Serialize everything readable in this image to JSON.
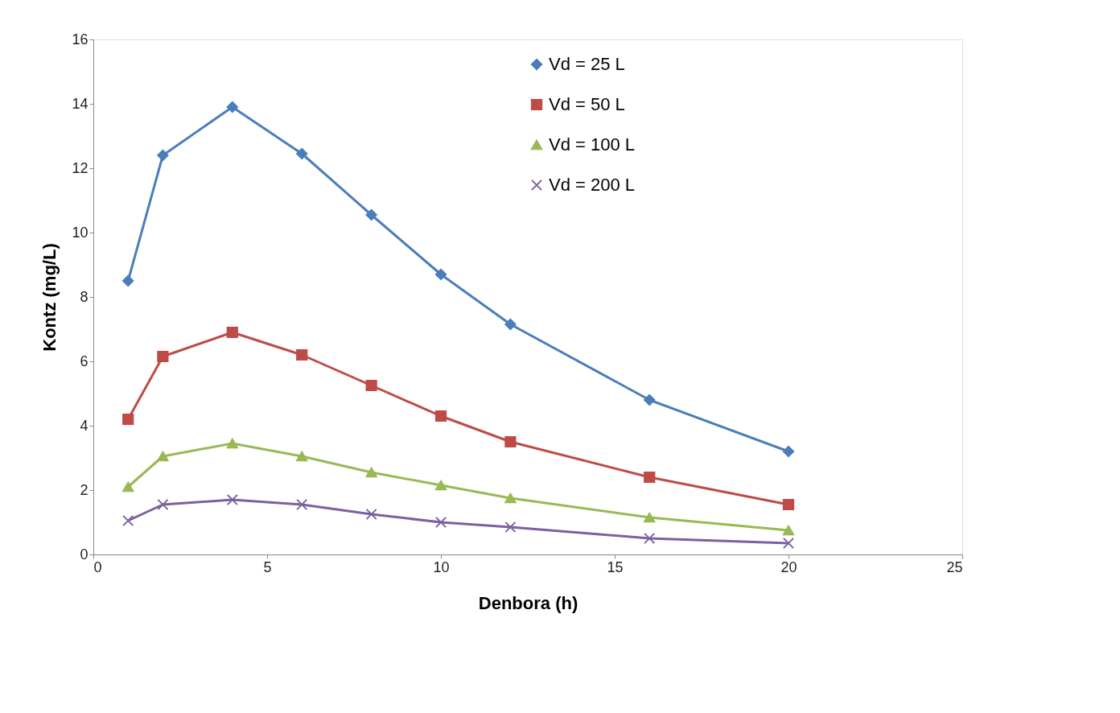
{
  "chart_data": {
    "type": "line",
    "xlabel": "Denbora (h)",
    "ylabel": "Kontz (mg/L)",
    "xlim": [
      0,
      25
    ],
    "xticks": [
      0,
      5,
      10,
      15,
      20,
      25
    ],
    "ylim": [
      0,
      16
    ],
    "yticks": [
      0,
      2,
      4,
      6,
      8,
      10,
      12,
      14,
      16
    ],
    "grid": false,
    "legend": "top right",
    "x": [
      1,
      2,
      4,
      6,
      8,
      10,
      12,
      16,
      20
    ],
    "series": [
      {
        "name": "Vd = 25 L",
        "color": "#4a7ebb",
        "marker": "diamond",
        "values": [
          8.5,
          12.4,
          13.9,
          12.45,
          10.55,
          8.7,
          7.15,
          4.8,
          3.2
        ]
      },
      {
        "name": "Vd = 50 L",
        "color": "#be4b48",
        "marker": "square",
        "values": [
          4.2,
          6.15,
          6.9,
          6.2,
          5.25,
          4.3,
          3.5,
          2.4,
          1.55
        ]
      },
      {
        "name": "Vd = 100 L",
        "color": "#98b954",
        "marker": "triangle",
        "values": [
          2.1,
          3.05,
          3.45,
          3.05,
          2.55,
          2.15,
          1.75,
          1.15,
          0.75
        ]
      },
      {
        "name": "Vd = 200 L",
        "color": "#7d60a0",
        "marker": "cross",
        "values": [
          1.05,
          1.55,
          1.7,
          1.55,
          1.25,
          1.0,
          0.85,
          0.5,
          0.35
        ]
      }
    ]
  }
}
